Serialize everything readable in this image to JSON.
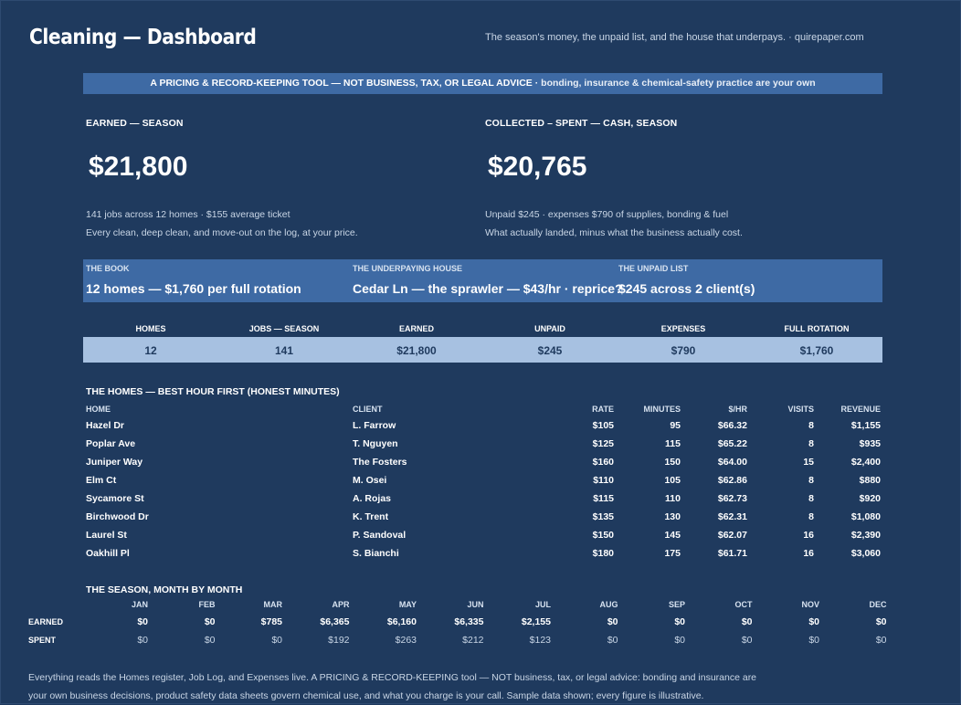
{
  "header": {
    "title": "Cleaning — Dashboard",
    "tagline": "The season's money, the unpaid list, and the house that underpays.  ·  quirepaper.com"
  },
  "banner": {
    "main": "A PRICING & RECORD-KEEPING TOOL — NOT BUSINESS, TAX, OR LEGAL ADVICE  ·  ",
    "sub": "bonding, insurance & chemical-safety practice are your own"
  },
  "kpis": {
    "earned": {
      "label": "EARNED — SEASON",
      "value": "$21,800",
      "note1": "141 jobs across 12 homes  ·  $155 average ticket",
      "note2": "Every clean, deep clean, and move-out on the log, at your price."
    },
    "cash": {
      "label": "COLLECTED – SPENT — CASH, SEASON",
      "value": "$20,765",
      "note1": "Unpaid $245 · expenses $790 of supplies, bonding & fuel",
      "note2": "What actually landed, minus what the business actually cost."
    }
  },
  "band": [
    {
      "label": "THE BOOK",
      "value": "12 homes — $1,760 per full rotation"
    },
    {
      "label": "THE UNDERPAYING HOUSE",
      "value": "Cedar Ln — the sprawler — $43/hr · reprice?"
    },
    {
      "label": "THE UNPAID LIST",
      "value": "$245 across 2 client(s)"
    }
  ],
  "stats": {
    "headers": [
      "HOMES",
      "JOBS — SEASON",
      "EARNED",
      "UNPAID",
      "EXPENSES",
      "FULL ROTATION"
    ],
    "values": [
      "12",
      "141",
      "$21,800",
      "$245",
      "$790",
      "$1,760"
    ]
  },
  "homes": {
    "title": "THE HOMES — BEST HOUR FIRST (HONEST MINUTES)",
    "columns": [
      "HOME",
      "CLIENT",
      "RATE",
      "MINUTES",
      "$/HR",
      "VISITS",
      "REVENUE"
    ],
    "rows": [
      [
        "Hazel Dr",
        "L. Farrow",
        "$105",
        "95",
        "$66.32",
        "8",
        "$1,155"
      ],
      [
        "Poplar Ave",
        "T. Nguyen",
        "$125",
        "115",
        "$65.22",
        "8",
        "$935"
      ],
      [
        "Juniper Way",
        "The Fosters",
        "$160",
        "150",
        "$64.00",
        "15",
        "$2,400"
      ],
      [
        "Elm Ct",
        "M. Osei",
        "$110",
        "105",
        "$62.86",
        "8",
        "$880"
      ],
      [
        "Sycamore St",
        "A. Rojas",
        "$115",
        "110",
        "$62.73",
        "8",
        "$920"
      ],
      [
        "Birchwood Dr",
        "K. Trent",
        "$135",
        "130",
        "$62.31",
        "8",
        "$1,080"
      ],
      [
        "Laurel St",
        "P. Sandoval",
        "$150",
        "145",
        "$62.07",
        "16",
        "$2,390"
      ],
      [
        "Oakhill Pl",
        "S. Bianchi",
        "$180",
        "175",
        "$61.71",
        "16",
        "$3,060"
      ]
    ]
  },
  "season": {
    "title": "THE SEASON, MONTH BY MONTH",
    "months": [
      "JAN",
      "FEB",
      "MAR",
      "APR",
      "MAY",
      "JUN",
      "JUL",
      "AUG",
      "SEP",
      "OCT",
      "NOV",
      "DEC"
    ],
    "earned_label": "EARNED",
    "spent_label": "SPENT",
    "earned": [
      "$0",
      "$0",
      "$785",
      "$6,365",
      "$6,160",
      "$6,335",
      "$2,155",
      "$0",
      "$0",
      "$0",
      "$0",
      "$0"
    ],
    "spent": [
      "$0",
      "$0",
      "$0",
      "$192",
      "$263",
      "$212",
      "$123",
      "$0",
      "$0",
      "$0",
      "$0",
      "$0"
    ]
  },
  "footer": "Everything reads the Homes register, Job Log, and Expenses live. A PRICING & RECORD-KEEPING tool — NOT business, tax, or legal advice: bonding and insurance are your own business decisions, product safety data sheets govern chemical use, and what you charge is your call. Sample data shown; every figure is illustrative.",
  "colors": {
    "background": "#1f3a5e",
    "banner": "#3e6aa4",
    "stat_row": "#a7c1e1"
  }
}
